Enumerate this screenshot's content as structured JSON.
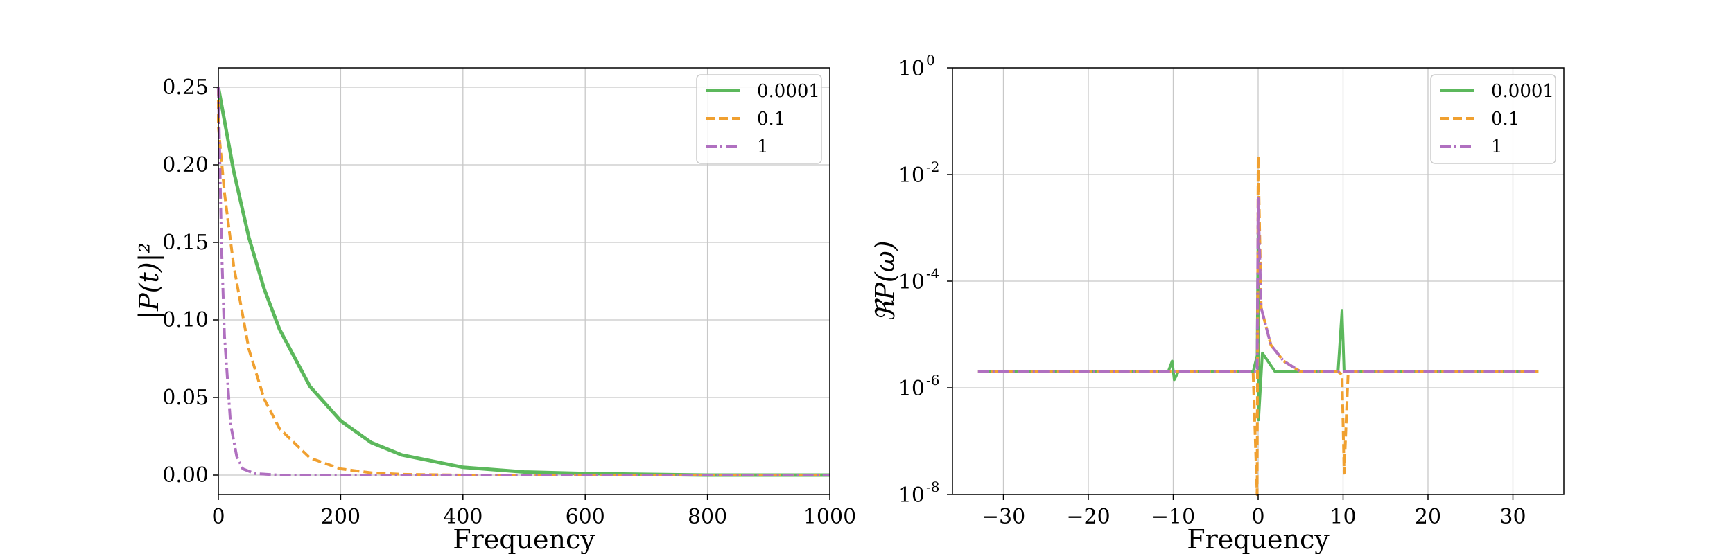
{
  "colors": {
    "series_0001": "#5cb85c",
    "series_01": "#f0a030",
    "series_1": "#b070c0",
    "grid": "#c8c8c8",
    "axes": "#000000"
  },
  "chart_data": [
    {
      "type": "line",
      "xlabel": "Frequency",
      "ylabel": "|P(t)|²",
      "xlim": [
        0,
        1000
      ],
      "ylim": [
        0.0,
        0.25
      ],
      "xticks": [
        0,
        200,
        400,
        600,
        800,
        1000
      ],
      "xtick_labels": [
        "0",
        "200",
        "400",
        "600",
        "800",
        "1000"
      ],
      "yticks": [
        0.0,
        0.05,
        0.1,
        0.15,
        0.2,
        0.25
      ],
      "ytick_labels": [
        "0.00",
        "0.05",
        "0.10",
        "0.15",
        "0.20",
        "0.25"
      ],
      "grid": true,
      "legend_position": "top-right",
      "series": [
        {
          "name": "0.0001",
          "style": "solid",
          "x": [
            0,
            25,
            50,
            75,
            100,
            150,
            200,
            250,
            300,
            400,
            500,
            600,
            800,
            1000
          ],
          "y": [
            0.25,
            0.196,
            0.153,
            0.12,
            0.094,
            0.057,
            0.035,
            0.021,
            0.013,
            0.005,
            0.002,
            0.001,
            0.0,
            0.0
          ]
        },
        {
          "name": "0.1",
          "style": "dashed",
          "x": [
            0,
            10,
            25,
            50,
            75,
            100,
            150,
            200,
            250,
            300,
            400,
            600,
            1000
          ],
          "y": [
            0.225,
            0.182,
            0.135,
            0.081,
            0.049,
            0.03,
            0.011,
            0.004,
            0.0015,
            0.0005,
            0.0,
            0.0,
            0.0
          ],
          "start_value": 0.25
        },
        {
          "name": "1",
          "style": "dashdot",
          "x": [
            0,
            5,
            10,
            20,
            30,
            40,
            60,
            100,
            300,
            600,
            1000
          ],
          "y": [
            0.25,
            0.15,
            0.09,
            0.033,
            0.012,
            0.004,
            0.001,
            0.0,
            0.0,
            0.0,
            0.0
          ]
        }
      ]
    },
    {
      "type": "line",
      "xlabel": "Frequency",
      "ylabel": "ℜP(ω)",
      "xlim": [
        -36,
        36
      ],
      "ylim_log10": [
        -8,
        0
      ],
      "yscale": "log",
      "xticks": [
        -30,
        -20,
        -10,
        0,
        10,
        20,
        30
      ],
      "xtick_labels": [
        "−30",
        "−20",
        "−10",
        "0",
        "10",
        "20",
        "30"
      ],
      "yticks_log10": [
        -8,
        -6,
        -4,
        -2,
        0
      ],
      "ytick_base": "10",
      "ytick_exponents": [
        "-8",
        "-6",
        "-4",
        "-2",
        "0"
      ],
      "grid": true,
      "legend_position": "top-right",
      "baseline_value": "2e-6",
      "series": [
        {
          "name": "0.0001",
          "style": "solid",
          "features": [
            {
              "x": -10.0,
              "peak_log10": -5.5,
              "dip_log10": -5.85
            },
            {
              "x": 0.0,
              "peak_log10": -3.0,
              "dip_log10": -6.6
            },
            {
              "x": 10.0,
              "peak_log10": -4.55,
              "dip_log10": -5.7
            }
          ]
        },
        {
          "name": "0.1",
          "style": "dashed",
          "features": [
            {
              "x": 0.0,
              "peak_log10": -1.65,
              "dip_log10": -8.0
            },
            {
              "x": 10.0,
              "peak_log10": -5.75,
              "dip_log10": -7.6
            }
          ]
        },
        {
          "name": "1",
          "style": "dashdot",
          "features": [
            {
              "x": 0.0,
              "peak_log10": -2.45,
              "dip_log10": -5.7
            }
          ]
        }
      ]
    }
  ]
}
